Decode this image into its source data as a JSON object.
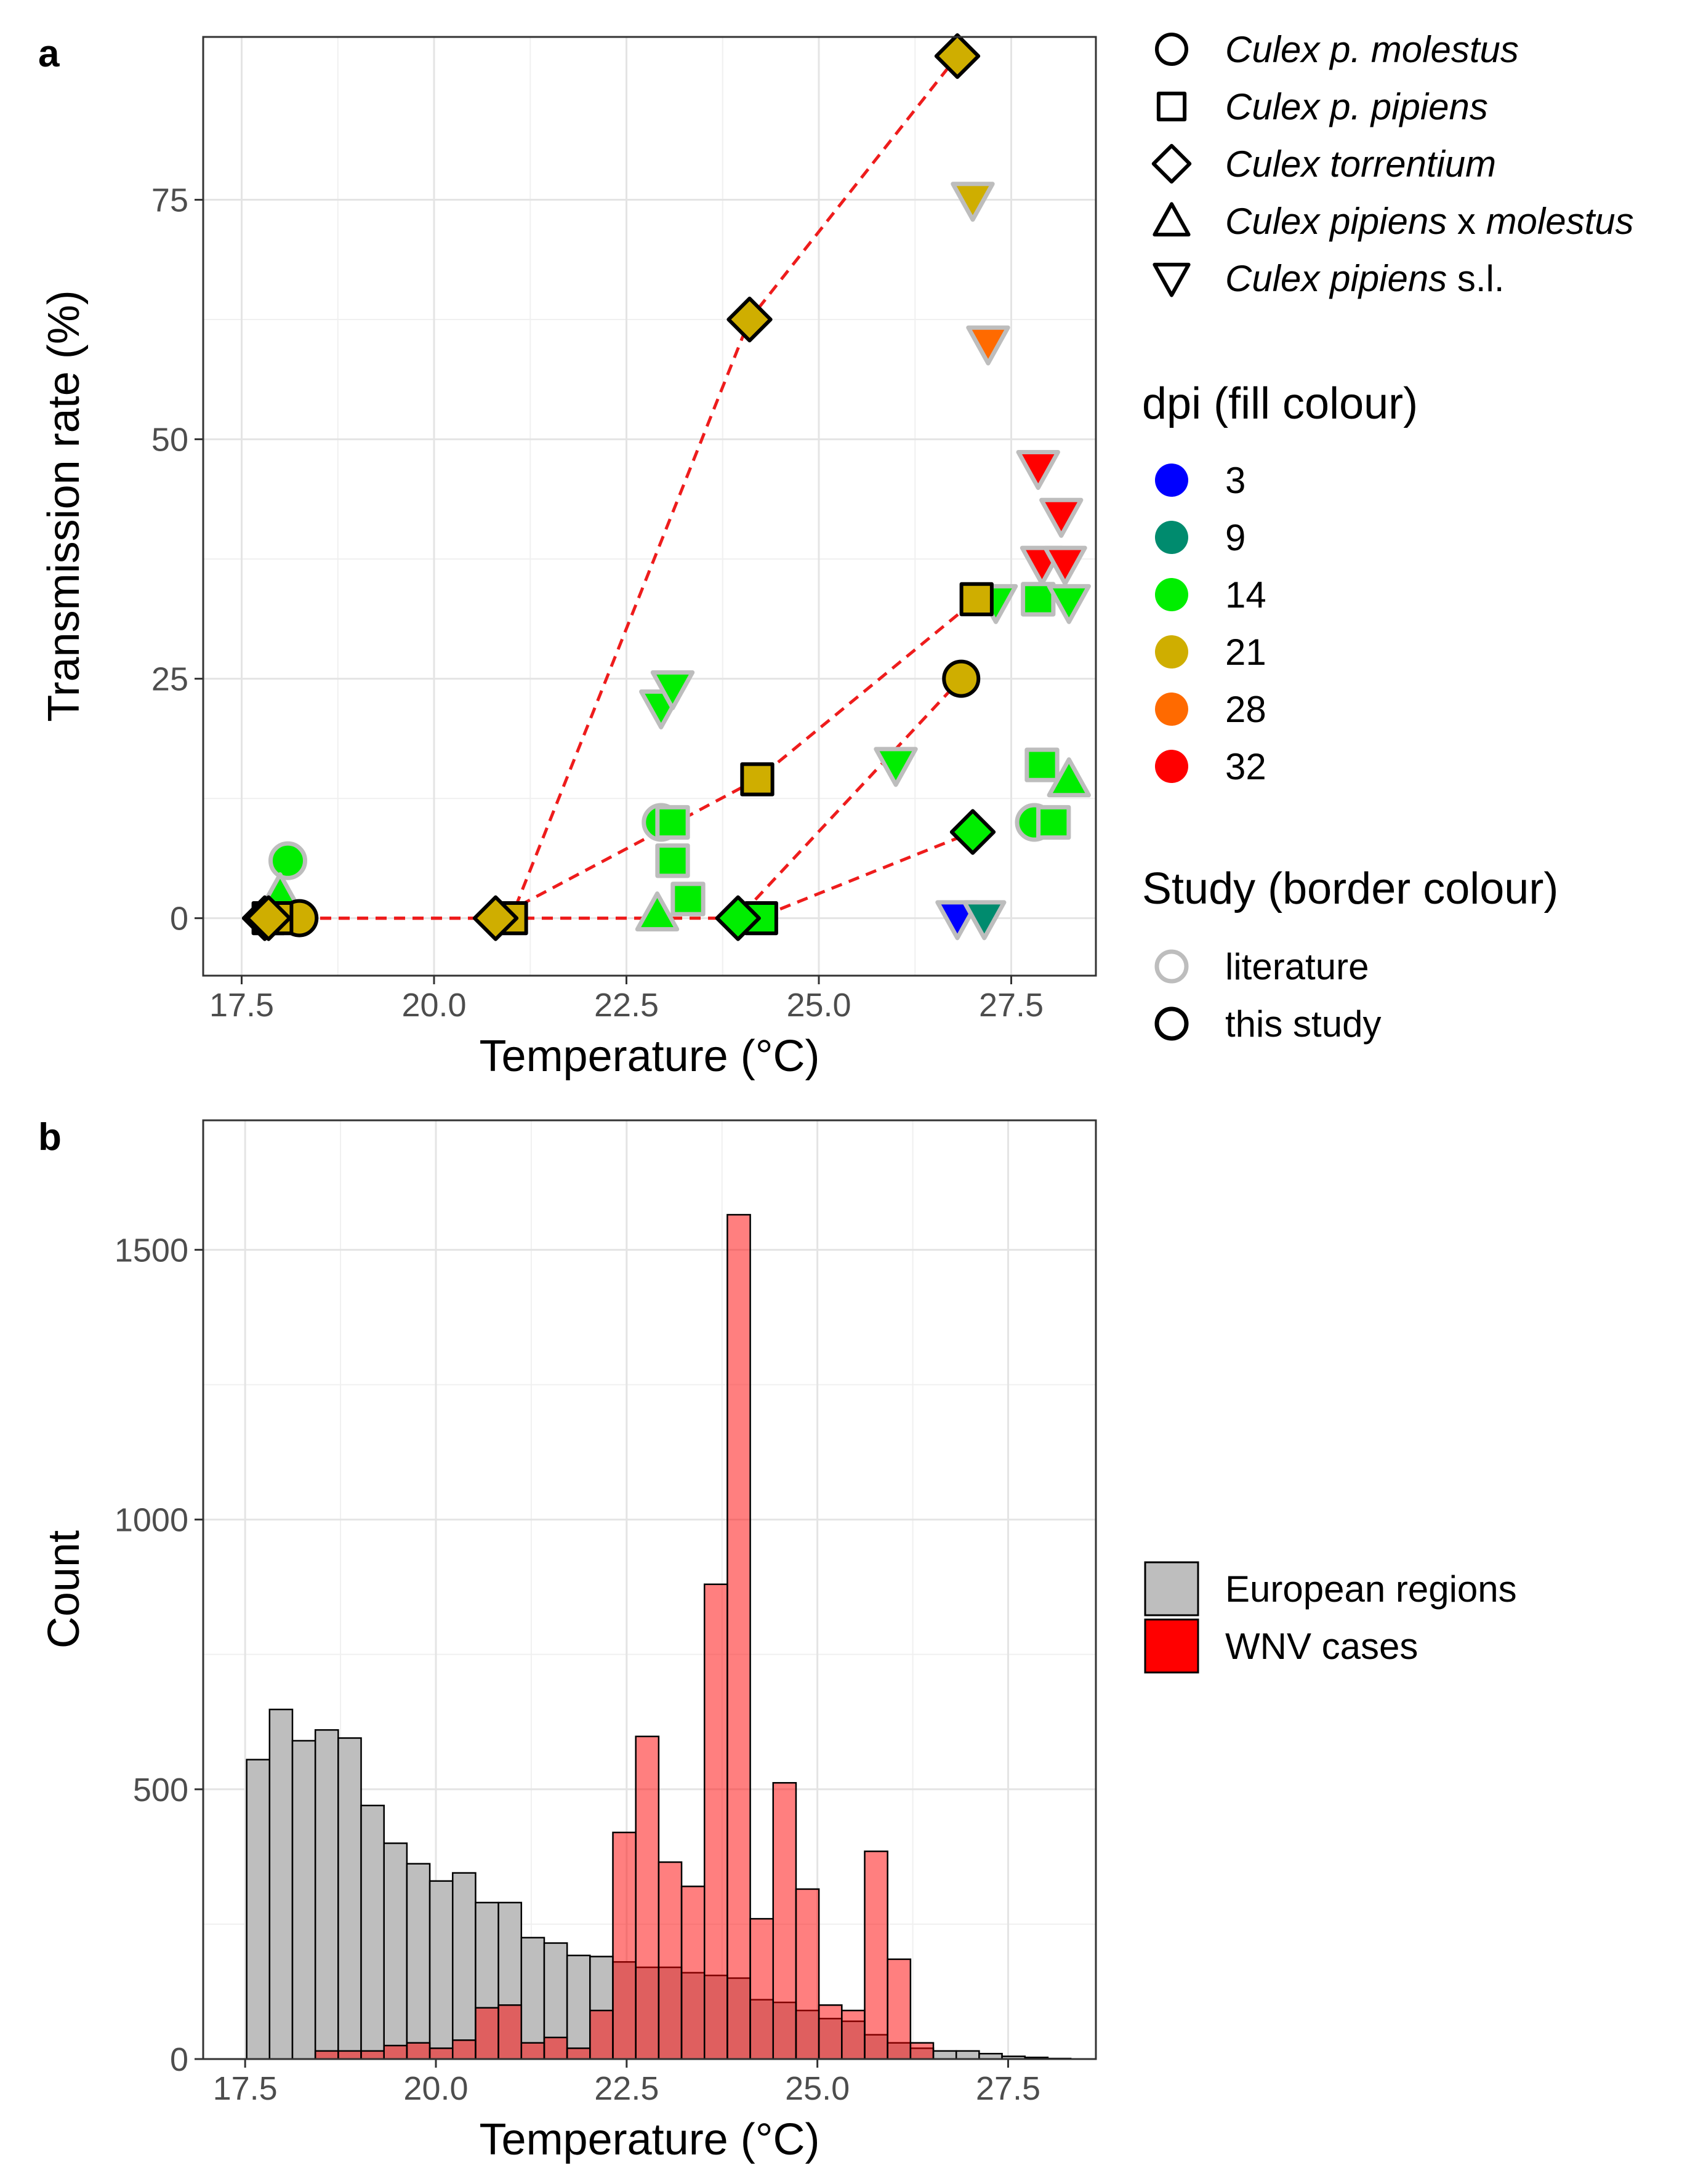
{
  "panel_labels": [
    "a",
    "b"
  ],
  "chart_data": [
    {
      "type": "scatter",
      "panel": "a",
      "xlabel": "Temperature (°C)",
      "ylabel": "Transmission rate (%)",
      "xlim": [
        17.0,
        28.6
      ],
      "ylim": [
        -6,
        92
      ],
      "x_ticks": [
        17.5,
        20.0,
        22.5,
        25.0,
        27.5
      ],
      "x_tick_labels": [
        "17.5",
        "20.0",
        "22.5",
        "25.0",
        "27.5"
      ],
      "y_ticks": [
        0,
        25,
        50,
        75
      ],
      "y_tick_labels": [
        "0",
        "25",
        "50",
        "75"
      ],
      "grid": true,
      "colors": {
        "line": "#ee1c1c",
        "border_literature": "#bdbdbd",
        "border_this_study": "#000000"
      },
      "dpi_colors": {
        "3": "#0000ff",
        "9": "#008b6e",
        "14": "#00ee00",
        "21": "#cfae00",
        "28": "#ff6a00",
        "32": "#ff0000"
      },
      "species_legend": {
        "title": "",
        "items": [
          {
            "shape": "circle",
            "parts": [
              {
                "text": "Culex p. molestus",
                "italic": true
              }
            ]
          },
          {
            "shape": "square",
            "parts": [
              {
                "text": "Culex p. pipiens",
                "italic": true
              }
            ]
          },
          {
            "shape": "diamond",
            "parts": [
              {
                "text": "Culex torrentium",
                "italic": true
              }
            ]
          },
          {
            "shape": "triangle-up",
            "parts": [
              {
                "text": "Culex pipiens",
                "italic": true
              },
              {
                "text": " x ",
                "italic": false
              },
              {
                "text": "molestus",
                "italic": true
              }
            ]
          },
          {
            "shape": "triangle-down",
            "parts": [
              {
                "text": "Culex pipiens",
                "italic": true
              },
              {
                "text": " s.l.",
                "italic": false
              }
            ]
          }
        ]
      },
      "dpi_legend": {
        "title": "dpi (fill colour)",
        "items": [
          "3",
          "9",
          "14",
          "21",
          "28",
          "32"
        ]
      },
      "study_legend": {
        "title": "Study (border colour)",
        "items": [
          "literature",
          "this study"
        ]
      },
      "lines": [
        {
          "points": [
            [
              17.8,
              0
            ],
            [
              21.0,
              0
            ],
            [
              24.1,
              62.5
            ],
            [
              26.8,
              90
            ]
          ]
        },
        {
          "points": [
            [
              17.8,
              0
            ],
            [
              20.8,
              0
            ],
            [
              24.2,
              14.5
            ],
            [
              27.05,
              33.3
            ]
          ]
        },
        {
          "points": [
            [
              17.8,
              0
            ],
            [
              23.95,
              0
            ],
            [
              26.85,
              25
            ]
          ]
        },
        {
          "points": [
            [
              17.8,
              0
            ],
            [
              24.2,
              0
            ],
            [
              27.0,
              9
            ]
          ]
        }
      ],
      "points": [
        {
          "x": 18.1,
          "y": 6,
          "shape": "circle",
          "dpi": "14",
          "study": "literature"
        },
        {
          "x": 18.0,
          "y": 2.5,
          "shape": "triangle-up",
          "dpi": "14",
          "study": "literature"
        },
        {
          "x": 22.95,
          "y": 22,
          "shape": "triangle-down",
          "dpi": "14",
          "study": "literature"
        },
        {
          "x": 23.1,
          "y": 24,
          "shape": "triangle-down",
          "dpi": "14",
          "study": "literature"
        },
        {
          "x": 22.95,
          "y": 10,
          "shape": "circle",
          "dpi": "14",
          "study": "literature"
        },
        {
          "x": 23.1,
          "y": 10,
          "shape": "square",
          "dpi": "14",
          "study": "literature"
        },
        {
          "x": 23.1,
          "y": 6,
          "shape": "square",
          "dpi": "14",
          "study": "literature"
        },
        {
          "x": 23.3,
          "y": 2,
          "shape": "square",
          "dpi": "14",
          "study": "literature"
        },
        {
          "x": 22.9,
          "y": 0.5,
          "shape": "triangle-up",
          "dpi": "14",
          "study": "literature"
        },
        {
          "x": 26.0,
          "y": 16,
          "shape": "triangle-down",
          "dpi": "14",
          "study": "literature"
        },
        {
          "x": 27.0,
          "y": 75,
          "shape": "triangle-down",
          "dpi": "21",
          "study": "literature"
        },
        {
          "x": 27.2,
          "y": 60,
          "shape": "triangle-down",
          "dpi": "28",
          "study": "literature"
        },
        {
          "x": 27.85,
          "y": 47,
          "shape": "triangle-down",
          "dpi": "32",
          "study": "literature"
        },
        {
          "x": 28.15,
          "y": 42,
          "shape": "triangle-down",
          "dpi": "32",
          "study": "literature"
        },
        {
          "x": 27.9,
          "y": 37,
          "shape": "triangle-down",
          "dpi": "32",
          "study": "literature"
        },
        {
          "x": 28.2,
          "y": 37,
          "shape": "triangle-down",
          "dpi": "32",
          "study": "literature"
        },
        {
          "x": 27.3,
          "y": 33,
          "shape": "triangle-down",
          "dpi": "14",
          "study": "literature"
        },
        {
          "x": 27.85,
          "y": 33.3,
          "shape": "square",
          "dpi": "14",
          "study": "literature"
        },
        {
          "x": 28.25,
          "y": 33,
          "shape": "triangle-down",
          "dpi": "14",
          "study": "literature"
        },
        {
          "x": 27.9,
          "y": 16,
          "shape": "square",
          "dpi": "14",
          "study": "literature"
        },
        {
          "x": 28.25,
          "y": 14.5,
          "shape": "triangle-up",
          "dpi": "14",
          "study": "literature"
        },
        {
          "x": 27.8,
          "y": 10,
          "shape": "circle",
          "dpi": "14",
          "study": "literature"
        },
        {
          "x": 28.05,
          "y": 10,
          "shape": "square",
          "dpi": "14",
          "study": "literature"
        },
        {
          "x": 26.8,
          "y": 0,
          "shape": "triangle-down",
          "dpi": "3",
          "study": "literature"
        },
        {
          "x": 27.15,
          "y": 0,
          "shape": "triangle-down",
          "dpi": "9",
          "study": "literature"
        },
        {
          "x": 17.85,
          "y": 0,
          "shape": "square",
          "dpi": "14",
          "study": "this study"
        },
        {
          "x": 18.25,
          "y": 0,
          "shape": "circle",
          "dpi": "21",
          "study": "this study"
        },
        {
          "x": 17.95,
          "y": 0,
          "shape": "square",
          "dpi": "21",
          "study": "this study"
        },
        {
          "x": 17.8,
          "y": 0,
          "shape": "diamond",
          "dpi": "14",
          "study": "this study"
        },
        {
          "x": 17.85,
          "y": 0,
          "shape": "diamond",
          "dpi": "21",
          "study": "this study"
        },
        {
          "x": 21.0,
          "y": 0,
          "shape": "square",
          "dpi": "21",
          "study": "this study"
        },
        {
          "x": 20.8,
          "y": 0,
          "shape": "diamond",
          "dpi": "21",
          "study": "this study"
        },
        {
          "x": 24.25,
          "y": 0,
          "shape": "square",
          "dpi": "14",
          "study": "this study"
        },
        {
          "x": 23.95,
          "y": 0,
          "shape": "diamond",
          "dpi": "14",
          "study": "this study"
        },
        {
          "x": 24.1,
          "y": 62.5,
          "shape": "diamond",
          "dpi": "21",
          "study": "this study"
        },
        {
          "x": 26.8,
          "y": 90,
          "shape": "diamond",
          "dpi": "21",
          "study": "this study"
        },
        {
          "x": 24.2,
          "y": 14.5,
          "shape": "square",
          "dpi": "21",
          "study": "this study"
        },
        {
          "x": 27.05,
          "y": 33.3,
          "shape": "square",
          "dpi": "21",
          "study": "this study"
        },
        {
          "x": 26.85,
          "y": 25,
          "shape": "circle",
          "dpi": "21",
          "study": "this study"
        },
        {
          "x": 27.0,
          "y": 9,
          "shape": "diamond",
          "dpi": "14",
          "study": "this study"
        }
      ]
    },
    {
      "type": "bar",
      "panel": "b",
      "xlabel": "Temperature (°C)",
      "ylabel": "Count",
      "xlim": [
        16.95,
        28.65
      ],
      "ylim": [
        0,
        1740
      ],
      "x_ticks": [
        17.5,
        20.0,
        22.5,
        25.0,
        27.5
      ],
      "x_tick_labels": [
        "17.5",
        "20.0",
        "22.5",
        "25.0",
        "27.5"
      ],
      "y_ticks": [
        0,
        500,
        1000,
        1500
      ],
      "y_tick_labels": [
        "0",
        "500",
        "1000",
        "1500"
      ],
      "grid": true,
      "bin_start": 17.52,
      "bin_width": 0.3,
      "colors": {
        "European regions": "#bebebe",
        "WNV cases": "#ff0000"
      },
      "legend": {
        "title": "",
        "items": [
          "European regions",
          "WNV cases"
        ]
      },
      "series": [
        {
          "name": "European regions",
          "values": [
            555,
            648,
            590,
            610,
            595,
            470,
            400,
            362,
            330,
            345,
            290,
            290,
            225,
            215,
            192,
            190,
            180,
            170,
            170,
            160,
            155,
            150,
            110,
            105,
            90,
            75,
            70,
            45,
            30,
            20,
            15,
            15,
            10,
            5,
            3,
            1
          ]
        },
        {
          "name": "WNV cases",
          "values": [
            0,
            0,
            0,
            15,
            15,
            15,
            25,
            30,
            20,
            35,
            95,
            100,
            30,
            40,
            20,
            90,
            420,
            598,
            365,
            320,
            880,
            1565,
            260,
            512,
            315,
            100,
            90,
            385,
            185,
            30,
            0,
            0,
            0,
            0,
            0,
            0
          ]
        }
      ]
    }
  ]
}
